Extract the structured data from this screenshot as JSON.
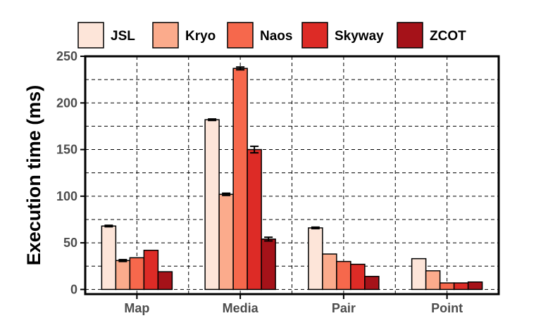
{
  "chart_data": {
    "type": "bar",
    "title": "",
    "xlabel": "",
    "ylabel": "Execution time (ms)",
    "ylim": [
      -5,
      250
    ],
    "yticks": [
      0,
      50,
      100,
      150,
      200,
      250
    ],
    "grid": true,
    "legend_position": "top",
    "categories": [
      "Map",
      "Media",
      "Pair",
      "Point"
    ],
    "series": [
      {
        "name": "JSL",
        "color": "#fde5d9",
        "values": [
          68,
          182,
          66,
          33
        ],
        "errors": [
          0.8,
          0.8,
          0.8,
          0
        ]
      },
      {
        "name": "Kryo",
        "color": "#fbab8c",
        "values": [
          31,
          102,
          38,
          20
        ],
        "errors": [
          1,
          1.2,
          0,
          0
        ]
      },
      {
        "name": "Naos",
        "color": "#f6684c",
        "values": [
          34,
          237,
          30,
          7
        ],
        "errors": [
          0,
          1.5,
          0,
          0
        ]
      },
      {
        "name": "Skyway",
        "color": "#dd2b26",
        "values": [
          42,
          150,
          27,
          7
        ],
        "errors": [
          0,
          3.5,
          0,
          0
        ]
      },
      {
        "name": "ZCOT",
        "color": "#a51219",
        "values": [
          19,
          54,
          14,
          8
        ],
        "errors": [
          0,
          2,
          0,
          0
        ]
      }
    ]
  }
}
